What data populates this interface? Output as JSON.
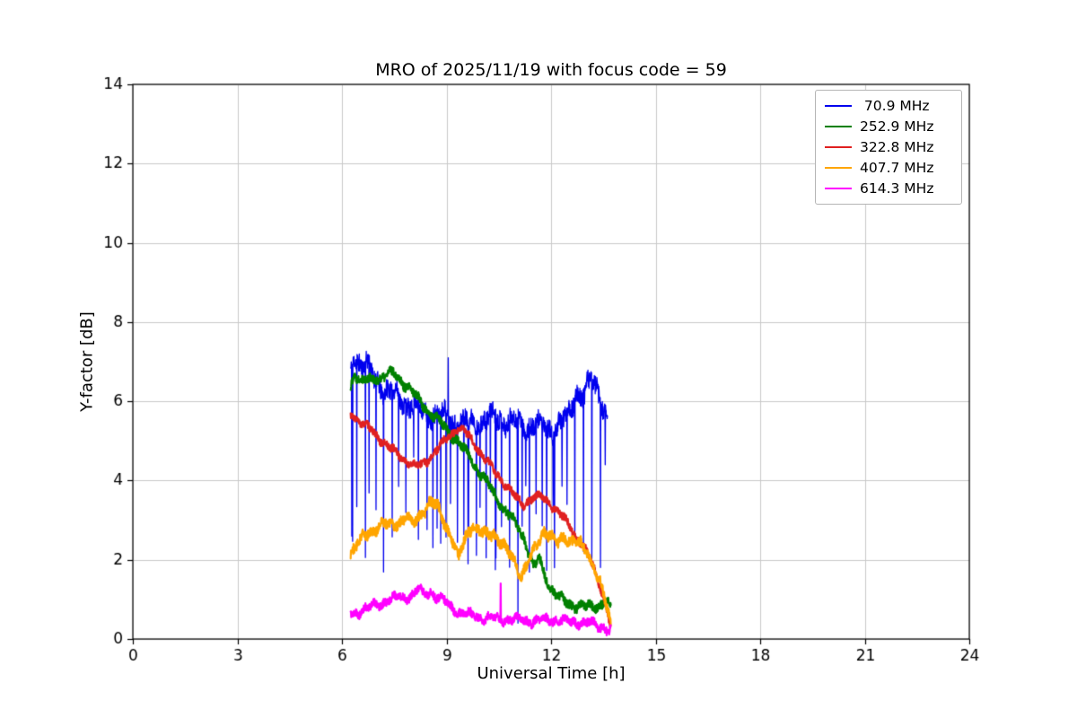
{
  "chart_data": {
    "type": "line",
    "title": "MRO of 2025/11/19 with focus code = 59",
    "xlabel": "Universal Time [h]",
    "ylabel": "Y-factor [dB]",
    "xlim": [
      0,
      24
    ],
    "ylim": [
      0,
      14
    ],
    "xticks": [
      0,
      3,
      6,
      9,
      12,
      15,
      18,
      21,
      24
    ],
    "yticks": [
      0,
      2,
      4,
      6,
      8,
      10,
      12,
      14
    ],
    "grid": true,
    "grid_color": "#c9c9c9",
    "legend_position": "upper right",
    "series": [
      {
        "name": " 70.9 MHz",
        "color": "#0000ee",
        "seed": 11,
        "linewidth": 1.3,
        "noise": 0.33,
        "x_range": [
          6.25,
          13.62
        ],
        "trend": [
          [
            6.25,
            6.7
          ],
          [
            6.35,
            7.25
          ],
          [
            6.5,
            7.0
          ],
          [
            6.7,
            6.9
          ],
          [
            6.9,
            6.6
          ],
          [
            7.2,
            6.35
          ],
          [
            7.5,
            6.15
          ],
          [
            7.8,
            6.0
          ],
          [
            8.1,
            5.85
          ],
          [
            8.4,
            5.7
          ],
          [
            8.7,
            5.65
          ],
          [
            9.0,
            5.6
          ],
          [
            9.3,
            5.5
          ],
          [
            9.6,
            5.45
          ],
          [
            9.9,
            5.5
          ],
          [
            10.2,
            5.55
          ],
          [
            10.5,
            5.6
          ],
          [
            10.8,
            5.5
          ],
          [
            11.1,
            5.45
          ],
          [
            11.4,
            5.4
          ],
          [
            11.7,
            5.35
          ],
          [
            12.0,
            5.3
          ],
          [
            12.3,
            5.4
          ],
          [
            12.55,
            5.8
          ],
          [
            12.75,
            6.3
          ],
          [
            12.95,
            6.1
          ],
          [
            13.15,
            6.5
          ],
          [
            13.35,
            6.3
          ],
          [
            13.5,
            5.9
          ],
          [
            13.62,
            5.45
          ]
        ],
        "spikes": {
          "interval": [
            0.1,
            0.26
          ],
          "depth": [
            1.6,
            4.6
          ]
        },
        "extra_spikes": [
          [
            6.28,
            2.6
          ],
          [
            9.05,
            7.1
          ],
          [
            9.62,
            1.9
          ],
          [
            10.4,
            1.75
          ],
          [
            11.05,
            0.4
          ],
          [
            12.1,
            1.8
          ],
          [
            13.55,
            4.4
          ]
        ]
      },
      {
        "name": "252.9 MHz",
        "color": "#008000",
        "seed": 22,
        "linewidth": 2.2,
        "noise": 0.15,
        "x_range": [
          6.25,
          13.72
        ],
        "trend": [
          [
            6.25,
            6.35
          ],
          [
            6.35,
            6.75
          ],
          [
            6.6,
            6.5
          ],
          [
            6.9,
            6.55
          ],
          [
            7.2,
            6.65
          ],
          [
            7.5,
            6.7
          ],
          [
            7.7,
            6.55
          ],
          [
            8.0,
            6.25
          ],
          [
            8.3,
            5.95
          ],
          [
            8.6,
            5.65
          ],
          [
            9.0,
            5.3
          ],
          [
            9.4,
            4.9
          ],
          [
            9.7,
            4.55
          ],
          [
            10.0,
            4.15
          ],
          [
            10.3,
            3.75
          ],
          [
            10.6,
            3.35
          ],
          [
            10.9,
            3.0
          ],
          [
            11.2,
            2.6
          ],
          [
            11.4,
            2.1
          ],
          [
            11.5,
            1.75
          ],
          [
            11.65,
            2.05
          ],
          [
            11.8,
            1.65
          ],
          [
            12.0,
            1.3
          ],
          [
            12.2,
            1.05
          ],
          [
            12.45,
            0.9
          ],
          [
            12.7,
            0.85
          ],
          [
            13.0,
            0.8
          ],
          [
            13.3,
            0.85
          ],
          [
            13.55,
            0.95
          ],
          [
            13.72,
            0.75
          ]
        ],
        "spikes": null,
        "extra_spikes": []
      },
      {
        "name": "322.8 MHz",
        "color": "#e02020",
        "seed": 33,
        "linewidth": 2.2,
        "noise": 0.12,
        "x_range": [
          6.25,
          13.7
        ],
        "trend": [
          [
            6.25,
            5.7
          ],
          [
            6.5,
            5.5
          ],
          [
            6.8,
            5.3
          ],
          [
            7.1,
            5.05
          ],
          [
            7.4,
            4.8
          ],
          [
            7.7,
            4.6
          ],
          [
            8.0,
            4.4
          ],
          [
            8.2,
            4.35
          ],
          [
            8.5,
            4.55
          ],
          [
            8.8,
            4.85
          ],
          [
            9.1,
            5.15
          ],
          [
            9.3,
            5.3
          ],
          [
            9.5,
            5.25
          ],
          [
            9.7,
            5.05
          ],
          [
            9.9,
            4.8
          ],
          [
            10.1,
            4.55
          ],
          [
            10.4,
            4.2
          ],
          [
            10.7,
            3.9
          ],
          [
            11.0,
            3.55
          ],
          [
            11.2,
            3.4
          ],
          [
            11.45,
            3.55
          ],
          [
            11.7,
            3.6
          ],
          [
            11.95,
            3.45
          ],
          [
            12.2,
            3.2
          ],
          [
            12.5,
            2.9
          ],
          [
            12.8,
            2.5
          ],
          [
            13.0,
            2.2
          ],
          [
            13.2,
            1.85
          ],
          [
            13.4,
            1.4
          ],
          [
            13.55,
            0.9
          ],
          [
            13.7,
            0.35
          ]
        ],
        "spikes": null,
        "extra_spikes": []
      },
      {
        "name": "407.7 MHz",
        "color": "#ffa500",
        "seed": 44,
        "linewidth": 2.2,
        "noise": 0.17,
        "x_range": [
          6.25,
          13.72
        ],
        "trend": [
          [
            6.25,
            2.2
          ],
          [
            6.5,
            2.45
          ],
          [
            6.8,
            2.7
          ],
          [
            7.1,
            2.9
          ],
          [
            7.35,
            2.85
          ],
          [
            7.6,
            2.95
          ],
          [
            7.85,
            3.05
          ],
          [
            8.05,
            2.9
          ],
          [
            8.3,
            3.2
          ],
          [
            8.55,
            3.45
          ],
          [
            8.75,
            3.3
          ],
          [
            8.95,
            2.95
          ],
          [
            9.15,
            2.55
          ],
          [
            9.35,
            2.0
          ],
          [
            9.55,
            2.6
          ],
          [
            9.75,
            2.9
          ],
          [
            9.95,
            2.7
          ],
          [
            10.15,
            2.6
          ],
          [
            10.35,
            2.7
          ],
          [
            10.55,
            2.45
          ],
          [
            10.75,
            2.2
          ],
          [
            10.95,
            1.95
          ],
          [
            11.15,
            1.65
          ],
          [
            11.35,
            1.9
          ],
          [
            11.6,
            2.4
          ],
          [
            11.8,
            2.75
          ],
          [
            12.0,
            2.6
          ],
          [
            12.2,
            2.4
          ],
          [
            12.4,
            2.6
          ],
          [
            12.6,
            2.5
          ],
          [
            12.85,
            2.35
          ],
          [
            13.05,
            2.15
          ],
          [
            13.25,
            1.8
          ],
          [
            13.45,
            1.3
          ],
          [
            13.6,
            0.75
          ],
          [
            13.72,
            0.3
          ]
        ],
        "spikes": null,
        "extra_spikes": []
      },
      {
        "name": "614.3 MHz",
        "color": "#ff00ff",
        "seed": 55,
        "linewidth": 2.2,
        "noise": 0.14,
        "x_range": [
          6.25,
          13.72
        ],
        "trend": [
          [
            6.25,
            0.65
          ],
          [
            6.5,
            0.7
          ],
          [
            6.8,
            0.8
          ],
          [
            7.1,
            0.9
          ],
          [
            7.4,
            1.0
          ],
          [
            7.7,
            1.05
          ],
          [
            8.0,
            1.1
          ],
          [
            8.2,
            1.25
          ],
          [
            8.35,
            1.1
          ],
          [
            8.55,
            1.2
          ],
          [
            8.75,
            1.05
          ],
          [
            8.95,
            0.95
          ],
          [
            9.15,
            0.8
          ],
          [
            9.4,
            0.65
          ],
          [
            9.7,
            0.6
          ],
          [
            10.0,
            0.55
          ],
          [
            10.4,
            0.5
          ],
          [
            10.8,
            0.5
          ],
          [
            11.2,
            0.48
          ],
          [
            11.6,
            0.45
          ],
          [
            12.0,
            0.5
          ],
          [
            12.4,
            0.45
          ],
          [
            12.8,
            0.42
          ],
          [
            13.2,
            0.38
          ],
          [
            13.5,
            0.3
          ],
          [
            13.72,
            0.2
          ]
        ],
        "spikes": null,
        "extra_spikes": [
          [
            10.55,
            1.4
          ]
        ]
      }
    ]
  }
}
